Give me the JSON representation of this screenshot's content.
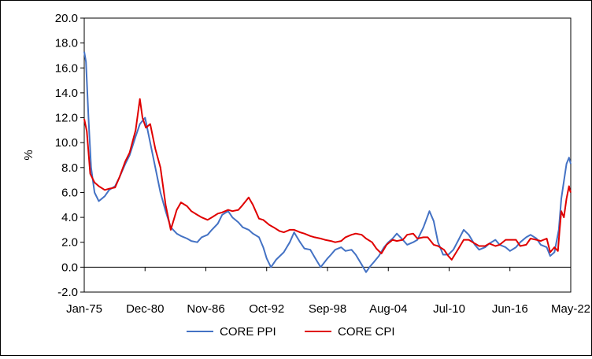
{
  "chart_data": {
    "type": "line",
    "title": "",
    "xlabel": "",
    "ylabel": "%",
    "ylim": [
      -2.0,
      20.0
    ],
    "yticks": [
      "20.0",
      "18.0",
      "16.0",
      "14.0",
      "12.0",
      "10.0",
      "8.0",
      "6.0",
      "4.0",
      "2.0",
      "0.0",
      "-2.0"
    ],
    "xrange": [
      "1975-01",
      "2022-05"
    ],
    "xticks": [
      "Jan-75",
      "Dec-80",
      "Nov-86",
      "Oct-92",
      "Sep-98",
      "Aug-04",
      "Jul-10",
      "Jun-16",
      "May-22"
    ],
    "grid": false,
    "legend_position": "bottom",
    "series": [
      {
        "name": "CORE PPI",
        "color": "#4472C4",
        "points": [
          [
            "1975-01",
            17.3
          ],
          [
            "1975-03",
            16.5
          ],
          [
            "1975-06",
            12.0
          ],
          [
            "1975-09",
            8.0
          ],
          [
            "1976-01",
            6.0
          ],
          [
            "1976-06",
            5.3
          ],
          [
            "1977-01",
            5.7
          ],
          [
            "1977-06",
            6.2
          ],
          [
            "1978-01",
            6.5
          ],
          [
            "1978-06",
            7.2
          ],
          [
            "1979-01",
            8.3
          ],
          [
            "1979-06",
            9.0
          ],
          [
            "1980-01",
            10.5
          ],
          [
            "1980-06",
            11.5
          ],
          [
            "1980-12",
            12.0
          ],
          [
            "1981-06",
            10.0
          ],
          [
            "1981-12",
            8.0
          ],
          [
            "1982-06",
            6.0
          ],
          [
            "1982-12",
            4.5
          ],
          [
            "1983-06",
            3.2
          ],
          [
            "1984-01",
            2.7
          ],
          [
            "1984-06",
            2.5
          ],
          [
            "1985-01",
            2.3
          ],
          [
            "1985-06",
            2.1
          ],
          [
            "1986-01",
            2.0
          ],
          [
            "1986-06",
            2.4
          ],
          [
            "1987-01",
            2.6
          ],
          [
            "1987-06",
            3.0
          ],
          [
            "1988-01",
            3.5
          ],
          [
            "1988-06",
            4.2
          ],
          [
            "1989-01",
            4.5
          ],
          [
            "1989-06",
            4.0
          ],
          [
            "1990-01",
            3.6
          ],
          [
            "1990-06",
            3.2
          ],
          [
            "1991-01",
            3.0
          ],
          [
            "1991-06",
            2.7
          ],
          [
            "1992-01",
            2.4
          ],
          [
            "1992-06",
            1.6
          ],
          [
            "1992-10",
            0.7
          ],
          [
            "1993-03",
            0.0
          ],
          [
            "1993-09",
            0.6
          ],
          [
            "1994-06",
            1.2
          ],
          [
            "1995-01",
            2.0
          ],
          [
            "1995-06",
            2.8
          ],
          [
            "1996-01",
            2.0
          ],
          [
            "1996-06",
            1.5
          ],
          [
            "1997-01",
            1.4
          ],
          [
            "1997-06",
            0.8
          ],
          [
            "1998-01",
            0.0
          ],
          [
            "1998-09",
            0.7
          ],
          [
            "1999-01",
            1.0
          ],
          [
            "1999-06",
            1.4
          ],
          [
            "2000-01",
            1.6
          ],
          [
            "2000-06",
            1.3
          ],
          [
            "2001-01",
            1.4
          ],
          [
            "2001-06",
            1.0
          ],
          [
            "2002-01",
            0.2
          ],
          [
            "2002-06",
            -0.4
          ],
          [
            "2002-10",
            0.0
          ],
          [
            "2003-03",
            0.4
          ],
          [
            "2003-09",
            0.9
          ],
          [
            "2004-03",
            1.6
          ],
          [
            "2004-08",
            2.0
          ],
          [
            "2005-01",
            2.3
          ],
          [
            "2005-06",
            2.7
          ],
          [
            "2006-01",
            2.2
          ],
          [
            "2006-06",
            1.8
          ],
          [
            "2007-01",
            2.0
          ],
          [
            "2007-06",
            2.2
          ],
          [
            "2008-01",
            3.2
          ],
          [
            "2008-08",
            4.5
          ],
          [
            "2009-01",
            3.7
          ],
          [
            "2009-06",
            2.0
          ],
          [
            "2009-12",
            1.0
          ],
          [
            "2010-06",
            1.0
          ],
          [
            "2010-12",
            1.4
          ],
          [
            "2011-06",
            2.2
          ],
          [
            "2011-12",
            3.0
          ],
          [
            "2012-06",
            2.6
          ],
          [
            "2013-01",
            1.8
          ],
          [
            "2013-06",
            1.4
          ],
          [
            "2014-01",
            1.6
          ],
          [
            "2014-06",
            1.9
          ],
          [
            "2015-01",
            2.2
          ],
          [
            "2015-06",
            1.8
          ],
          [
            "2016-01",
            1.6
          ],
          [
            "2016-06",
            1.3
          ],
          [
            "2017-01",
            1.6
          ],
          [
            "2017-06",
            2.0
          ],
          [
            "2018-01",
            2.4
          ],
          [
            "2018-06",
            2.6
          ],
          [
            "2019-01",
            2.3
          ],
          [
            "2019-06",
            1.8
          ],
          [
            "2020-01",
            1.6
          ],
          [
            "2020-05",
            0.9
          ],
          [
            "2020-10",
            1.2
          ],
          [
            "2021-03",
            3.0
          ],
          [
            "2021-06",
            5.5
          ],
          [
            "2021-09",
            6.9
          ],
          [
            "2021-12",
            8.3
          ],
          [
            "2022-03",
            8.8
          ],
          [
            "2022-05",
            8.3
          ]
        ]
      },
      {
        "name": "CORE CPI",
        "color": "#E00000",
        "points": [
          [
            "1975-01",
            11.9
          ],
          [
            "1975-04",
            10.9
          ],
          [
            "1975-08",
            7.5
          ],
          [
            "1976-01",
            6.8
          ],
          [
            "1976-06",
            6.5
          ],
          [
            "1977-01",
            6.2
          ],
          [
            "1977-06",
            6.3
          ],
          [
            "1978-01",
            6.4
          ],
          [
            "1978-06",
            7.2
          ],
          [
            "1979-01",
            8.5
          ],
          [
            "1979-06",
            9.2
          ],
          [
            "1980-01",
            11.0
          ],
          [
            "1980-06",
            13.5
          ],
          [
            "1980-09",
            12.0
          ],
          [
            "1981-01",
            11.2
          ],
          [
            "1981-06",
            11.5
          ],
          [
            "1981-12",
            9.5
          ],
          [
            "1982-06",
            8.0
          ],
          [
            "1982-12",
            5.0
          ],
          [
            "1983-06",
            3.0
          ],
          [
            "1984-01",
            4.6
          ],
          [
            "1984-06",
            5.2
          ],
          [
            "1985-01",
            4.9
          ],
          [
            "1985-06",
            4.5
          ],
          [
            "1986-01",
            4.2
          ],
          [
            "1986-06",
            4.0
          ],
          [
            "1987-01",
            3.8
          ],
          [
            "1987-06",
            4.0
          ],
          [
            "1988-01",
            4.3
          ],
          [
            "1988-06",
            4.4
          ],
          [
            "1989-01",
            4.6
          ],
          [
            "1989-06",
            4.5
          ],
          [
            "1990-01",
            4.6
          ],
          [
            "1990-06",
            5.0
          ],
          [
            "1991-01",
            5.6
          ],
          [
            "1991-06",
            5.0
          ],
          [
            "1992-01",
            3.9
          ],
          [
            "1992-06",
            3.8
          ],
          [
            "1993-01",
            3.4
          ],
          [
            "1993-06",
            3.2
          ],
          [
            "1994-01",
            2.9
          ],
          [
            "1994-06",
            2.8
          ],
          [
            "1995-01",
            3.0
          ],
          [
            "1995-06",
            3.0
          ],
          [
            "1996-01",
            2.8
          ],
          [
            "1996-06",
            2.7
          ],
          [
            "1997-01",
            2.5
          ],
          [
            "1997-06",
            2.4
          ],
          [
            "1998-01",
            2.3
          ],
          [
            "1998-06",
            2.2
          ],
          [
            "1999-01",
            2.1
          ],
          [
            "1999-06",
            2.0
          ],
          [
            "2000-01",
            2.1
          ],
          [
            "2000-06",
            2.4
          ],
          [
            "2001-01",
            2.6
          ],
          [
            "2001-06",
            2.7
          ],
          [
            "2002-01",
            2.6
          ],
          [
            "2002-06",
            2.3
          ],
          [
            "2003-01",
            2.0
          ],
          [
            "2003-06",
            1.5
          ],
          [
            "2003-12",
            1.1
          ],
          [
            "2004-06",
            1.8
          ],
          [
            "2005-01",
            2.2
          ],
          [
            "2005-06",
            2.1
          ],
          [
            "2006-01",
            2.2
          ],
          [
            "2006-06",
            2.6
          ],
          [
            "2007-01",
            2.7
          ],
          [
            "2007-06",
            2.3
          ],
          [
            "2008-01",
            2.4
          ],
          [
            "2008-06",
            2.4
          ],
          [
            "2009-01",
            1.8
          ],
          [
            "2009-06",
            1.7
          ],
          [
            "2010-01",
            1.4
          ],
          [
            "2010-06",
            0.9
          ],
          [
            "2010-10",
            0.6
          ],
          [
            "2011-06",
            1.5
          ],
          [
            "2011-12",
            2.2
          ],
          [
            "2012-06",
            2.2
          ],
          [
            "2013-01",
            1.9
          ],
          [
            "2013-06",
            1.7
          ],
          [
            "2014-01",
            1.7
          ],
          [
            "2014-06",
            1.9
          ],
          [
            "2015-01",
            1.7
          ],
          [
            "2015-06",
            1.8
          ],
          [
            "2016-01",
            2.2
          ],
          [
            "2016-06",
            2.2
          ],
          [
            "2017-01",
            2.2
          ],
          [
            "2017-06",
            1.7
          ],
          [
            "2018-01",
            1.8
          ],
          [
            "2018-06",
            2.3
          ],
          [
            "2019-01",
            2.2
          ],
          [
            "2019-06",
            2.1
          ],
          [
            "2020-01",
            2.3
          ],
          [
            "2020-05",
            1.2
          ],
          [
            "2020-10",
            1.6
          ],
          [
            "2021-02",
            1.3
          ],
          [
            "2021-04",
            3.0
          ],
          [
            "2021-06",
            4.5
          ],
          [
            "2021-09",
            4.0
          ],
          [
            "2021-12",
            5.5
          ],
          [
            "2022-03",
            6.5
          ],
          [
            "2022-04",
            6.2
          ],
          [
            "2022-05",
            6.0
          ]
        ]
      }
    ]
  }
}
